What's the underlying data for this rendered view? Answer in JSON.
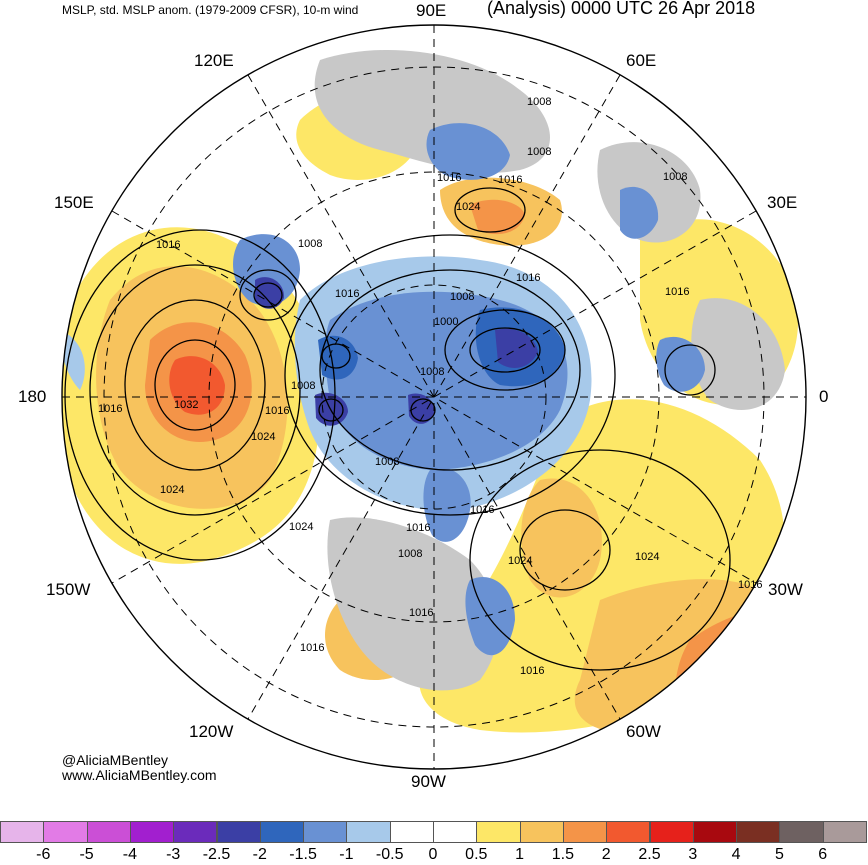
{
  "header": {
    "left_text": "MSLP, std. MSLP anom. (1979-2009 CFSR), 10-m wind",
    "right_text": "(Analysis) 0000 UTC 26 Apr 2018"
  },
  "longitude_labels": {
    "e90": "90E",
    "e60": "60E",
    "e30": "30E",
    "zero": "0",
    "w30": "30W",
    "w60": "60W",
    "w90": "90W",
    "w120": "120W",
    "w150": "150W",
    "d180": "180",
    "e150": "150E",
    "e120": "120E"
  },
  "isobars": {
    "l1008_a": "1008",
    "l1008_b": "1008",
    "l1008_c": "1008",
    "l1008_d": "1008",
    "l1008_e": "1008",
    "l1008_f": "1008",
    "l1008_g": "1008",
    "l1008_h": "1008",
    "l1008_i": "1008",
    "l1016_a": "1016",
    "l1016_b": "1016",
    "l1016_c": "1016",
    "l1016_d": "1016",
    "l1016_e": "1016",
    "l1016_f": "1016",
    "l1016_g": "1016",
    "l1016_h": "1016",
    "l1016_i": "1016",
    "l1016_j": "1016",
    "l1016_k": "1016",
    "l1016_l": "1016",
    "l1016_m": "1016",
    "l1016_n": "1016",
    "l1024_a": "1024",
    "l1024_b": "1024",
    "l1024_c": "1024",
    "l1024_d": "1024",
    "l1024_e": "1024",
    "l1024_f": "1024",
    "l1032": "1032",
    "l1000": "1000"
  },
  "credits": {
    "handle": "@AliciaMBentley",
    "website": "www.AliciaMBentley.com"
  },
  "colorbar": {
    "ticks": [
      "-6",
      "-5",
      "-4",
      "-3",
      "-2.5",
      "-2",
      "-1.5",
      "-1",
      "-0.5",
      "0",
      "0.5",
      "1",
      "1.5",
      "2",
      "2.5",
      "3",
      "4",
      "5",
      "6"
    ],
    "colors": [
      "#e6b4ea",
      "#e27be6",
      "#cb4fd6",
      "#a21fcf",
      "#6b2bbb",
      "#3b3fa5",
      "#2f66bc",
      "#6991d3",
      "#a7c9ea",
      "#ffffff",
      "#ffffff",
      "#fde767",
      "#f7c35d",
      "#f49448",
      "#f2592f",
      "#e6211b",
      "#a8090f",
      "#7a2f22",
      "#6e6161",
      "#a99a9a"
    ]
  }
}
